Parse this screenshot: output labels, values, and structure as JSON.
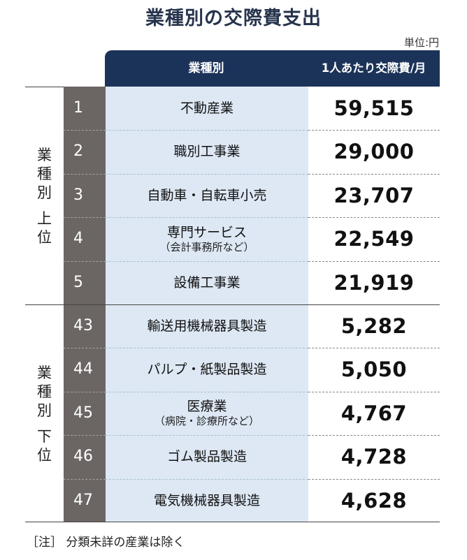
{
  "title": "業種別の交際費支出",
  "unit": "単位:円",
  "header": {
    "col_name": "業種別",
    "col_value": "1人あたり交際費/月"
  },
  "groups": {
    "top": [
      "業",
      "種",
      "別",
      "",
      "上",
      "位"
    ],
    "bottom": [
      "業",
      "種",
      "別",
      "",
      "下",
      "位"
    ]
  },
  "note": "［注］ 分類未詳の産業は除く",
  "chart_data": {
    "type": "table",
    "title": "業種別の交際費支出",
    "columns": [
      "業種別",
      "1人あたり交際費/月"
    ],
    "unit": "単位:円",
    "rows": [
      {
        "group": "業種別上位",
        "rank": "1",
        "industry": "不動産業",
        "sub": "",
        "value": "59,515",
        "value_num": 59515
      },
      {
        "group": "業種別上位",
        "rank": "2",
        "industry": "職別工事業",
        "sub": "",
        "value": "29,000",
        "value_num": 29000
      },
      {
        "group": "業種別上位",
        "rank": "3",
        "industry": "自動車・自転車小売",
        "sub": "",
        "value": "23,707",
        "value_num": 23707
      },
      {
        "group": "業種別上位",
        "rank": "4",
        "industry": "専門サービス",
        "sub": "（会計事務所など）",
        "value": "22,549",
        "value_num": 22549
      },
      {
        "group": "業種別上位",
        "rank": "5",
        "industry": "設備工事業",
        "sub": "",
        "value": "21,919",
        "value_num": 21919
      },
      {
        "group": "業種別下位",
        "rank": "43",
        "industry": "輸送用機械器具製造",
        "sub": "",
        "value": "5,282",
        "value_num": 5282
      },
      {
        "group": "業種別下位",
        "rank": "44",
        "industry": "パルプ・紙製品製造",
        "sub": "",
        "value": "5,050",
        "value_num": 5050
      },
      {
        "group": "業種別下位",
        "rank": "45",
        "industry": "医療業",
        "sub": "（病院・診療所など）",
        "value": "4,767",
        "value_num": 4767
      },
      {
        "group": "業種別下位",
        "rank": "46",
        "industry": "ゴム製品製造",
        "sub": "",
        "value": "4,728",
        "value_num": 4728
      },
      {
        "group": "業種別下位",
        "rank": "47",
        "industry": "電気機械器具製造",
        "sub": "",
        "value": "4,628",
        "value_num": 4628
      }
    ]
  }
}
